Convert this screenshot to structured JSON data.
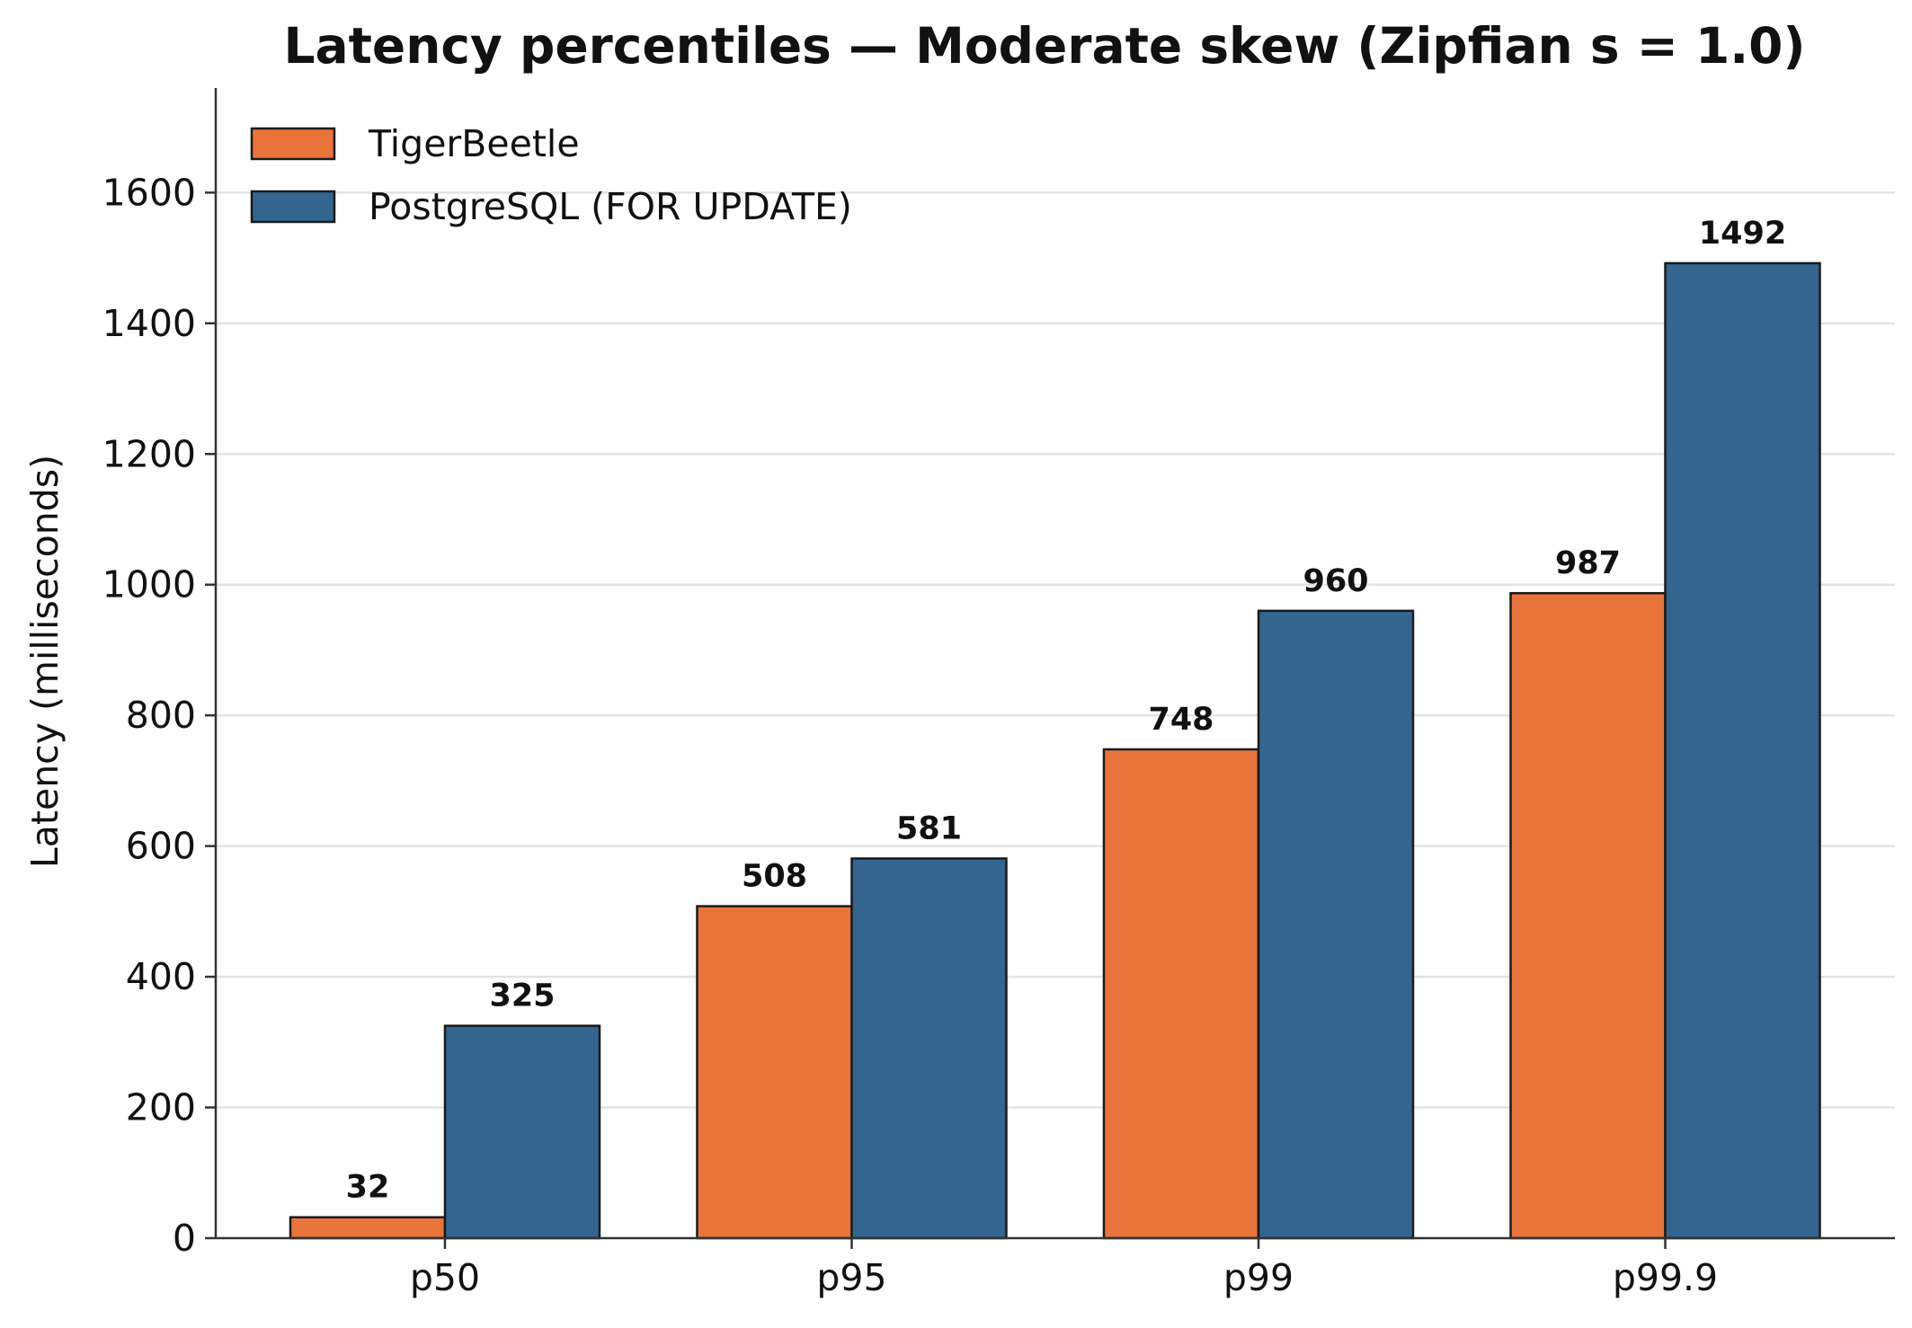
{
  "chart_data": {
    "type": "bar",
    "title": "Latency percentiles — Moderate skew (Zipfian s = 1.0)",
    "xlabel": "",
    "ylabel": "Latency (milliseconds)",
    "categories": [
      "p50",
      "p95",
      "p99",
      "p99.9"
    ],
    "series": [
      {
        "name": "TigerBeetle",
        "color": "#e8743b",
        "values": [
          32,
          508,
          748,
          987
        ]
      },
      {
        "name": "PostgreSQL (FOR UPDATE)",
        "color": "#33658f",
        "values": [
          325,
          581,
          960,
          1492
        ]
      }
    ],
    "ylim": [
      0,
      1760
    ],
    "yticks": [
      0,
      200,
      400,
      600,
      800,
      1000,
      1200,
      1400,
      1600
    ],
    "grid": "horizontal",
    "legend": "top-left",
    "data_labels": true
  }
}
